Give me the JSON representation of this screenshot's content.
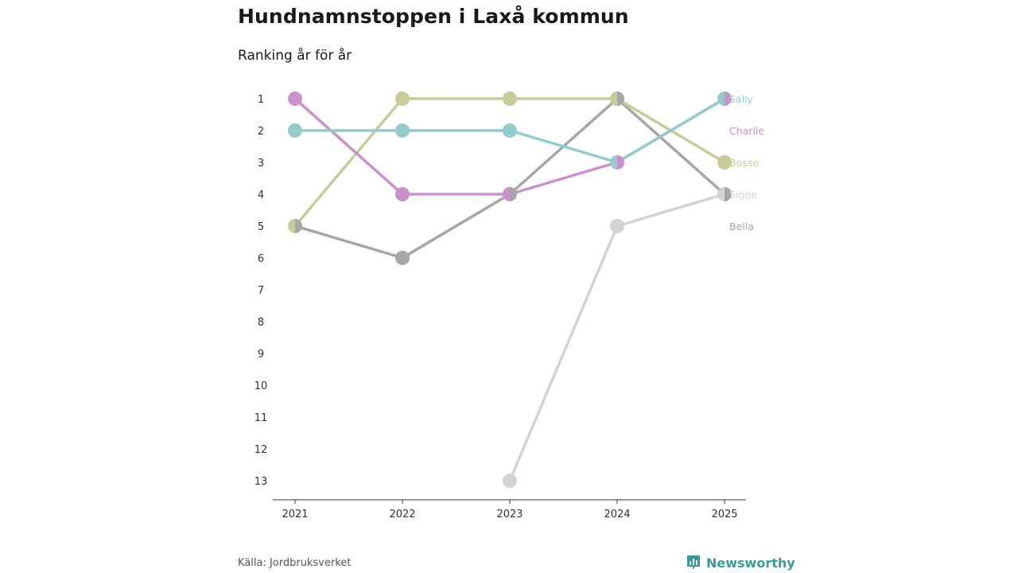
{
  "title": "Hundnamnstoppen i Laxå kommun",
  "subtitle": "Ranking år för år",
  "source": "Källa: Jordbruksverket",
  "brand": "Newsworthy",
  "chart_data": {
    "type": "line",
    "subtype": "bump",
    "title": "Hundnamnstoppen i Laxå kommun",
    "subtitle": "Ranking år för år",
    "xlabel": "",
    "ylabel": "",
    "x": [
      "2021",
      "2022",
      "2023",
      "2024",
      "2025"
    ],
    "y_ticks": [
      1,
      2,
      3,
      4,
      5,
      6,
      7,
      8,
      9,
      10,
      11,
      12,
      13
    ],
    "ylim": [
      1,
      13
    ],
    "y_inverted": true,
    "grid": false,
    "series": [
      {
        "name": "Bella",
        "color": "#a6a6a6",
        "values": [
          5,
          6,
          4,
          1,
          4
        ]
      },
      {
        "name": "Sigge",
        "color": "#d3d3d3",
        "values": [
          null,
          null,
          13,
          5,
          4
        ]
      },
      {
        "name": "Bosse",
        "color": "#c9cc96",
        "values": [
          5,
          1,
          1,
          1,
          3
        ]
      },
      {
        "name": "Charlie",
        "color": "#c992cc",
        "values": [
          1,
          4,
          4,
          3,
          1
        ]
      },
      {
        "name": "Sally",
        "color": "#94cccc",
        "values": [
          2,
          2,
          2,
          3,
          1
        ]
      }
    ],
    "end_labels": [
      {
        "name": "Sally",
        "rank": 1
      },
      {
        "name": "Charlie",
        "rank": 2
      },
      {
        "name": "Bosse",
        "rank": 3
      },
      {
        "name": "Sigge",
        "rank": 4
      },
      {
        "name": "Bella",
        "rank": 5
      }
    ]
  }
}
